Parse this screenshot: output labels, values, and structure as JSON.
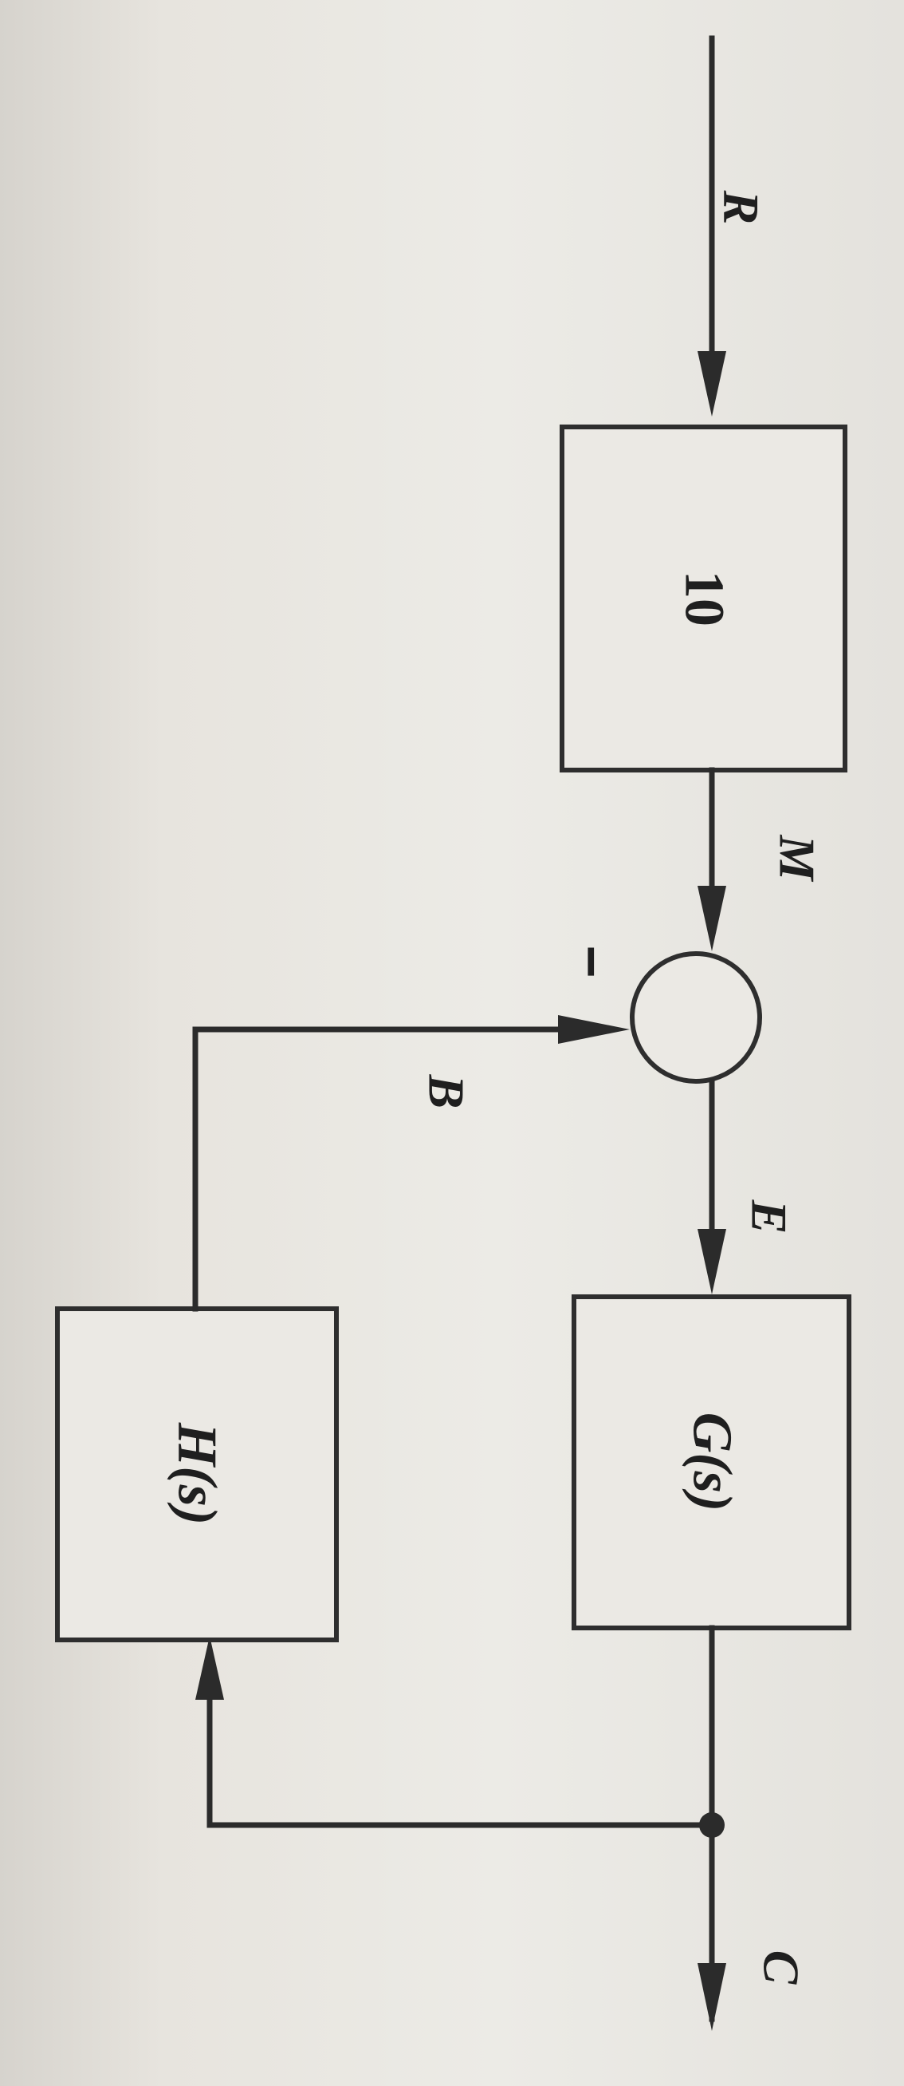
{
  "signals": {
    "input": "R",
    "after_gain": "M",
    "error": "E",
    "feedback": "B",
    "output": "C"
  },
  "blocks": {
    "gain": "10",
    "forward": "G(s)",
    "feedback": "H(s)"
  },
  "summing_junction": {
    "feedback_sign": "−"
  }
}
